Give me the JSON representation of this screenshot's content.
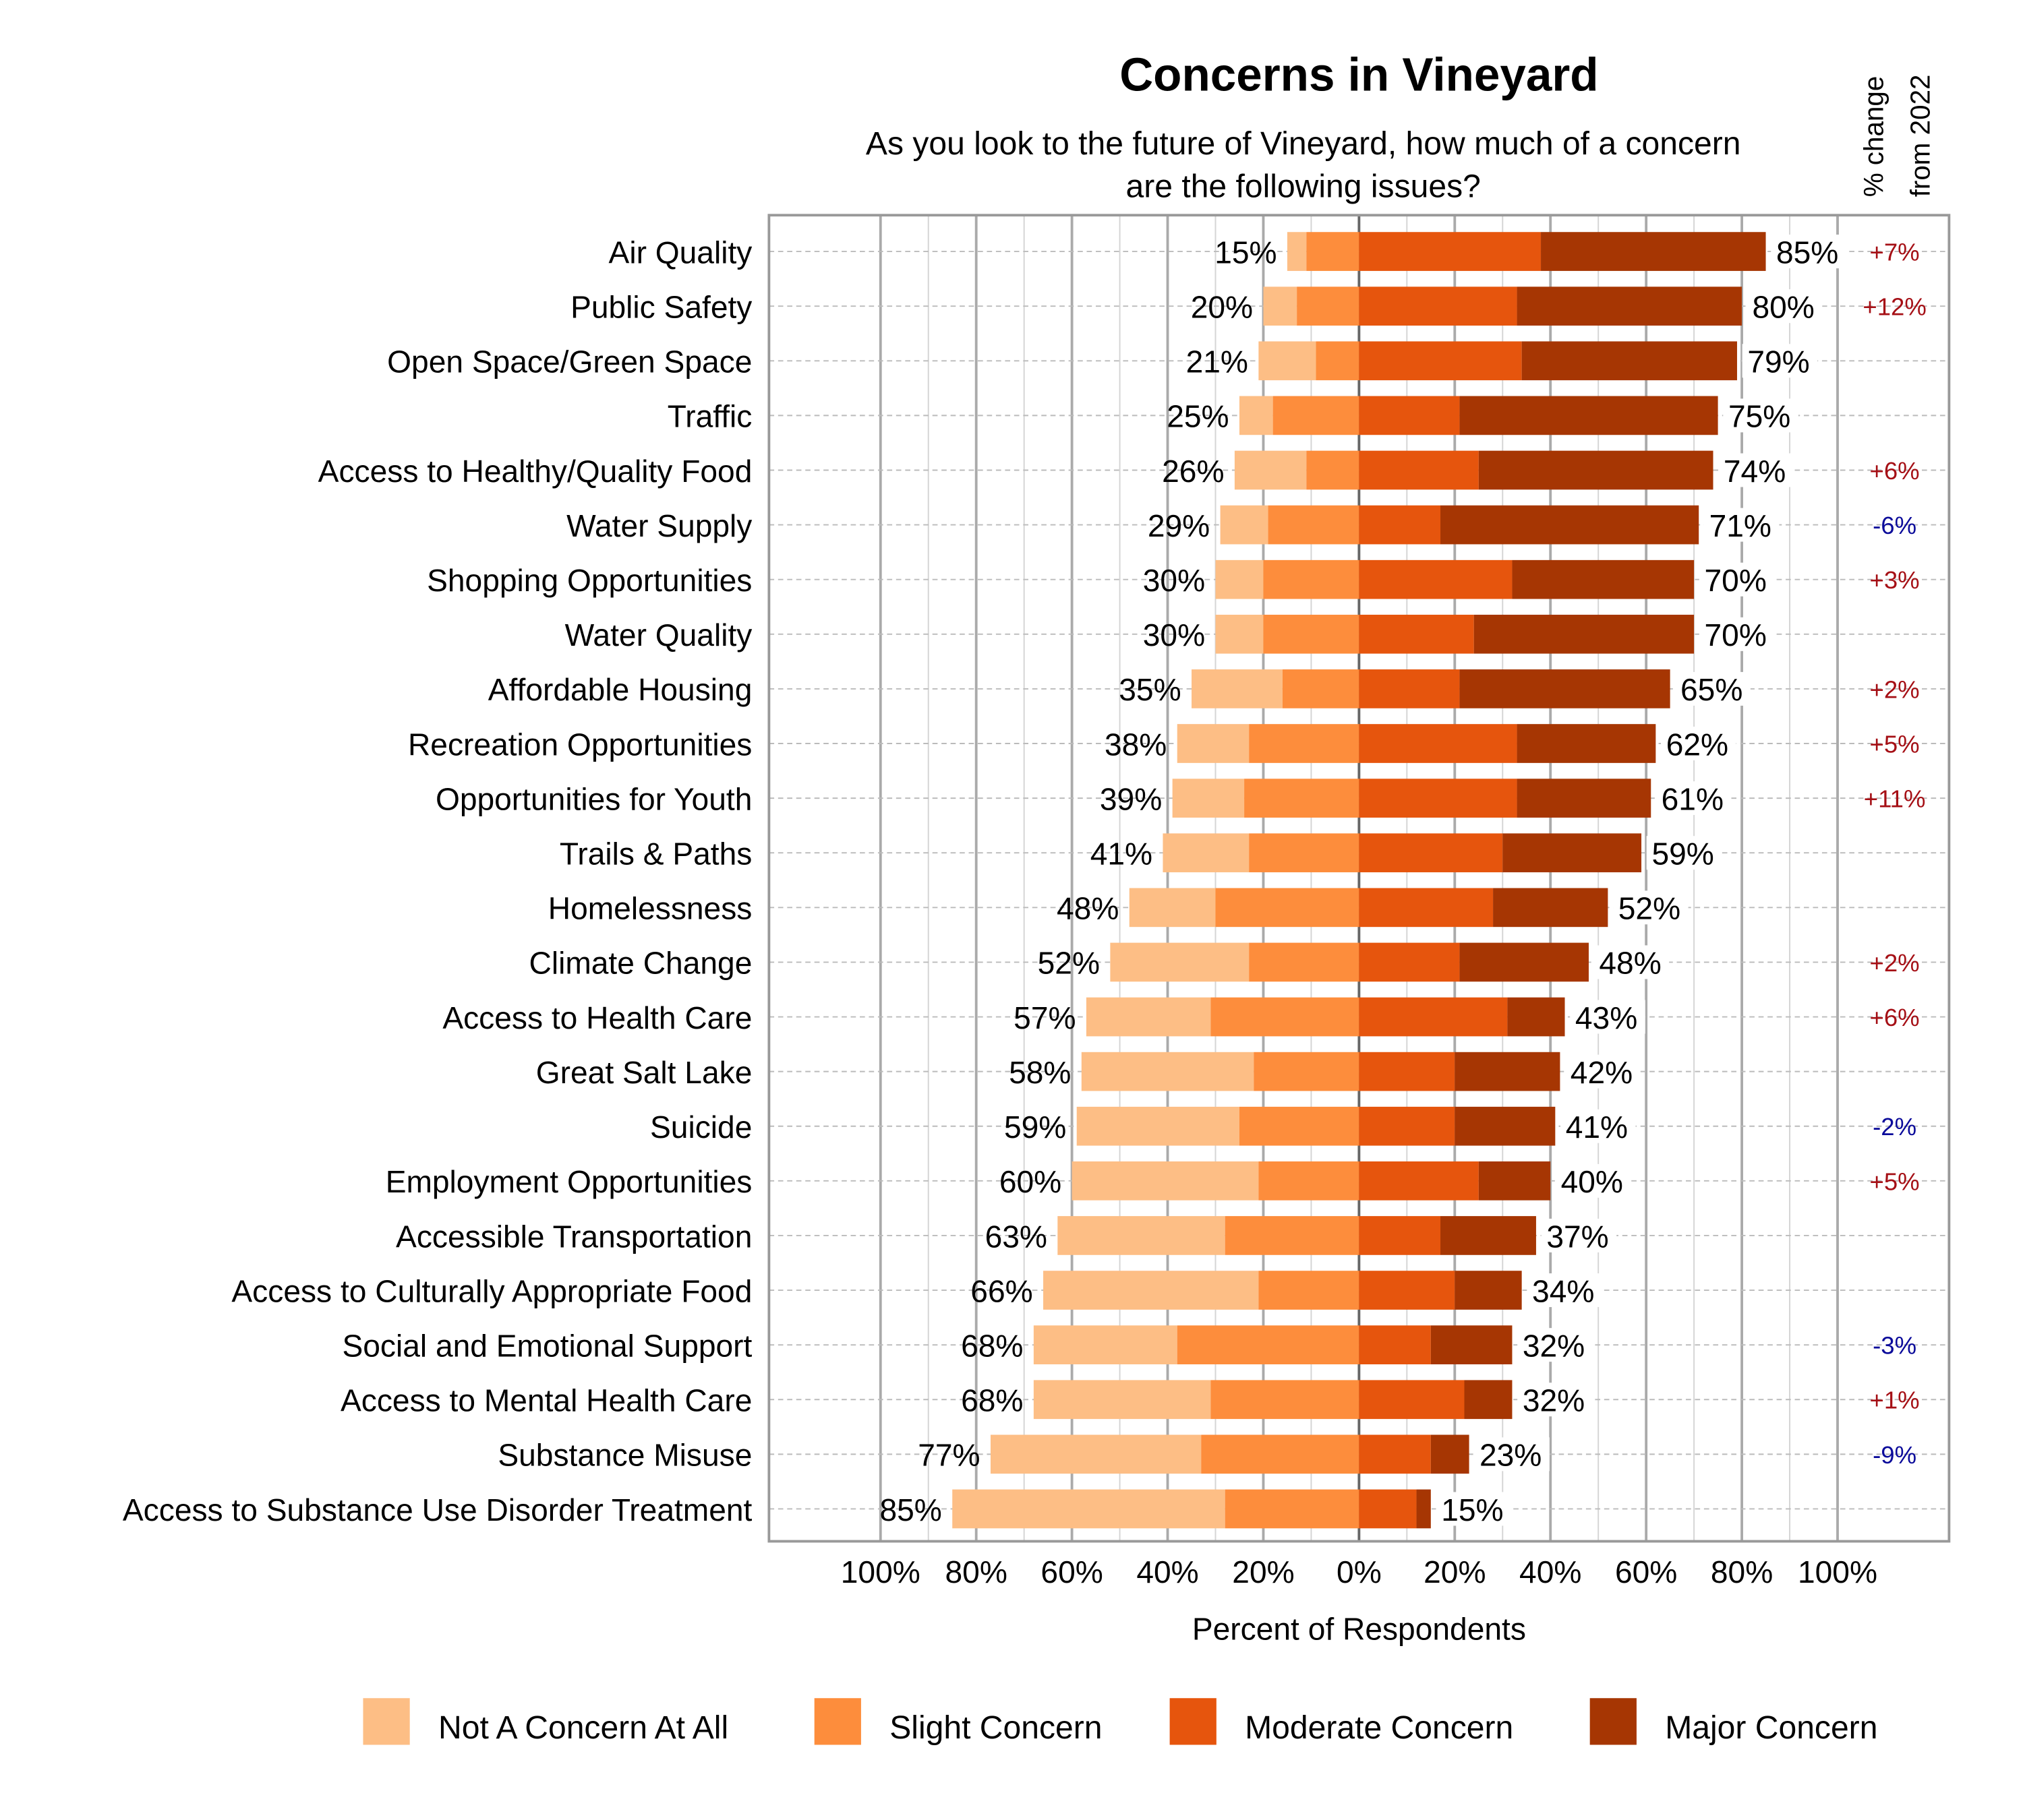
{
  "chart_data": {
    "type": "bar",
    "orientation": "horizontal-diverging",
    "title": "Concerns in Vineyard",
    "subtitle": [
      "As you look to the future of Vineyard, how much of a concern",
      "are the following issues?"
    ],
    "xlabel": "Percent of Respondents",
    "change_header": [
      "% change",
      "from 2022"
    ],
    "xlim": [
      -100,
      100
    ],
    "tick_labels": [
      "100%",
      "80%",
      "60%",
      "40%",
      "20%",
      "0%",
      "20%",
      "40%",
      "60%",
      "80%",
      "100%"
    ],
    "grid": true,
    "legend_position": "bottom",
    "series": [
      {
        "name": "Not A Concern At All",
        "color": "#fdbe85",
        "side": "negative"
      },
      {
        "name": "Slight Concern",
        "color": "#fd8d3c",
        "side": "negative"
      },
      {
        "name": "Moderate Concern",
        "color": "#e6550d",
        "side": "positive"
      },
      {
        "name": "Major Concern",
        "color": "#a63603",
        "side": "positive"
      }
    ],
    "change_colors": {
      "positive": "#a50f15",
      "negative": "#0a0a9a"
    },
    "categories": [
      {
        "label": "Air Quality",
        "values": [
          4,
          11,
          38,
          47
        ],
        "neg_label": "15%",
        "pos_label": "85%",
        "change": "+7%"
      },
      {
        "label": "Public Safety",
        "values": [
          7,
          13,
          33,
          47
        ],
        "neg_label": "20%",
        "pos_label": "80%",
        "change": "+12%"
      },
      {
        "label": "Open Space/Green Space",
        "values": [
          12,
          9,
          34,
          45
        ],
        "neg_label": "21%",
        "pos_label": "79%",
        "change": ""
      },
      {
        "label": "Traffic",
        "values": [
          7,
          18,
          21,
          54
        ],
        "neg_label": "25%",
        "pos_label": "75%",
        "change": ""
      },
      {
        "label": "Access to Healthy/Quality Food",
        "values": [
          15,
          11,
          25,
          49
        ],
        "neg_label": "26%",
        "pos_label": "74%",
        "change": "+6%"
      },
      {
        "label": "Water Supply",
        "values": [
          10,
          19,
          17,
          54
        ],
        "neg_label": "29%",
        "pos_label": "71%",
        "change": "-6%"
      },
      {
        "label": "Shopping Opportunities",
        "values": [
          10,
          20,
          32,
          38
        ],
        "neg_label": "30%",
        "pos_label": "70%",
        "change": "+3%"
      },
      {
        "label": "Water Quality",
        "values": [
          10,
          20,
          24,
          46
        ],
        "neg_label": "30%",
        "pos_label": "70%",
        "change": ""
      },
      {
        "label": "Affordable Housing",
        "values": [
          19,
          16,
          21,
          44
        ],
        "neg_label": "35%",
        "pos_label": "65%",
        "change": "+2%"
      },
      {
        "label": "Recreation Opportunities",
        "values": [
          15,
          23,
          33,
          29
        ],
        "neg_label": "38%",
        "pos_label": "62%",
        "change": "+5%"
      },
      {
        "label": "Opportunities for Youth",
        "values": [
          15,
          24,
          33,
          28
        ],
        "neg_label": "39%",
        "pos_label": "61%",
        "change": "+11%"
      },
      {
        "label": "Trails & Paths",
        "values": [
          18,
          23,
          30,
          29
        ],
        "neg_label": "41%",
        "pos_label": "59%",
        "change": ""
      },
      {
        "label": "Homelessness",
        "values": [
          18,
          30,
          28,
          24
        ],
        "neg_label": "48%",
        "pos_label": "52%",
        "change": ""
      },
      {
        "label": "Climate Change",
        "values": [
          29,
          23,
          21,
          27
        ],
        "neg_label": "52%",
        "pos_label": "48%",
        "change": "+2%"
      },
      {
        "label": "Access to Health Care",
        "values": [
          26,
          31,
          31,
          12
        ],
        "neg_label": "57%",
        "pos_label": "43%",
        "change": "+6%"
      },
      {
        "label": "Great Salt Lake",
        "values": [
          36,
          22,
          20,
          22
        ],
        "neg_label": "58%",
        "pos_label": "42%",
        "change": ""
      },
      {
        "label": "Suicide",
        "values": [
          34,
          25,
          20,
          21
        ],
        "neg_label": "59%",
        "pos_label": "41%",
        "change": "-2%"
      },
      {
        "label": "Employment Opportunities",
        "values": [
          39,
          21,
          25,
          15
        ],
        "neg_label": "60%",
        "pos_label": "40%",
        "change": "+5%"
      },
      {
        "label": "Accessible Transportation",
        "values": [
          35,
          28,
          17,
          20
        ],
        "neg_label": "63%",
        "pos_label": "37%",
        "change": ""
      },
      {
        "label": "Access to Culturally Appropriate Food",
        "values": [
          45,
          21,
          20,
          14
        ],
        "neg_label": "66%",
        "pos_label": "34%",
        "change": ""
      },
      {
        "label": "Social and Emotional Support",
        "values": [
          30,
          38,
          15,
          17
        ],
        "neg_label": "68%",
        "pos_label": "32%",
        "change": "-3%"
      },
      {
        "label": "Access to Mental Health Care",
        "values": [
          37,
          31,
          22,
          10
        ],
        "neg_label": "68%",
        "pos_label": "32%",
        "change": "+1%"
      },
      {
        "label": "Substance Misuse",
        "values": [
          44,
          33,
          15,
          8
        ],
        "neg_label": "77%",
        "pos_label": "23%",
        "change": "-9%"
      },
      {
        "label": "Access to Substance Use Disorder Treatment",
        "values": [
          57,
          28,
          12,
          3
        ],
        "neg_label": "85%",
        "pos_label": "15%",
        "change": ""
      }
    ]
  }
}
